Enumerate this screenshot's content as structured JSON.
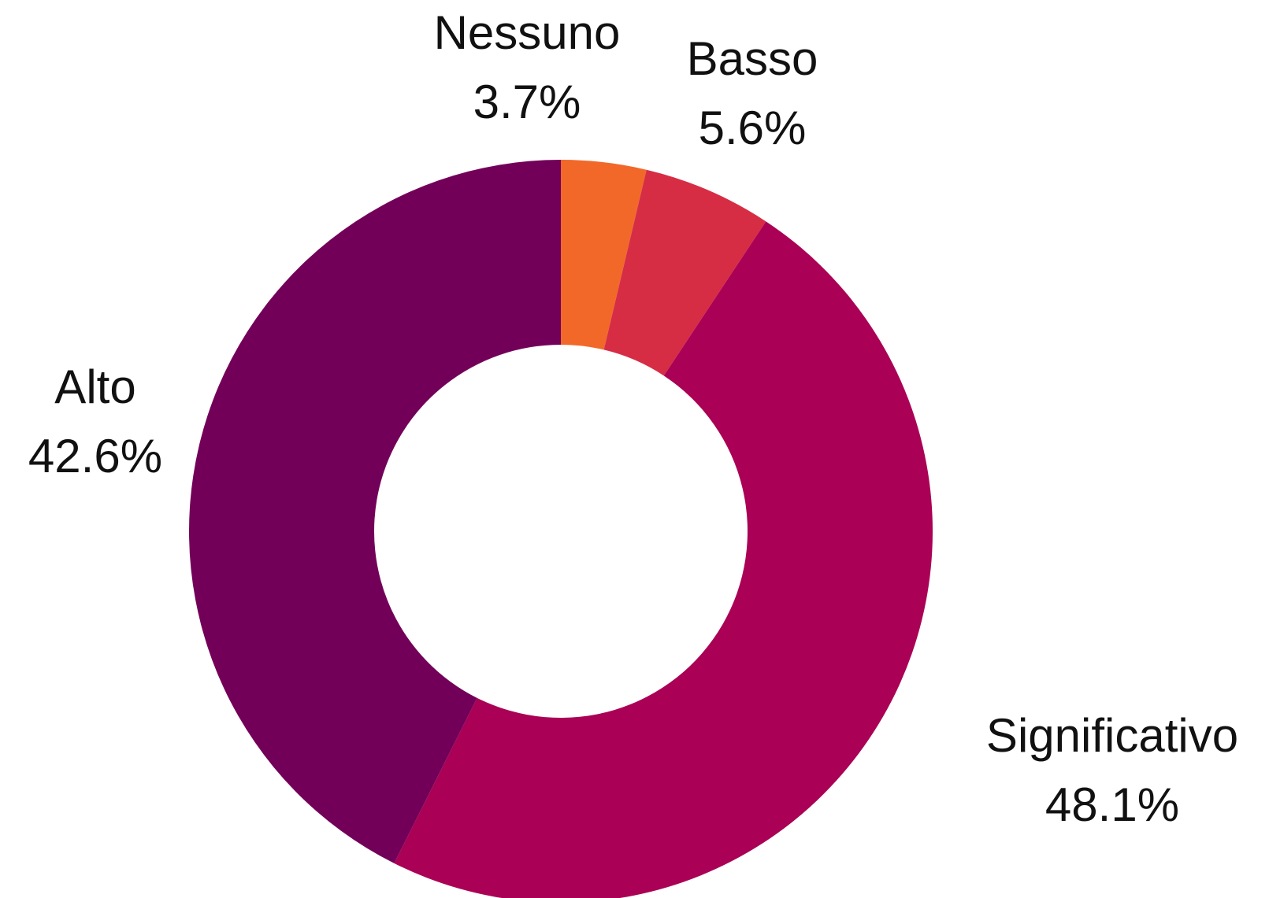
{
  "chart_data": {
    "type": "pie",
    "donut": true,
    "title": "",
    "slices": [
      {
        "label": "Nessuno",
        "value": 3.7,
        "percent_label": "3.7%",
        "color": "#F26829"
      },
      {
        "label": "Basso",
        "value": 5.6,
        "percent_label": "5.6%",
        "color": "#D62D45"
      },
      {
        "label": "Significativo",
        "value": 48.1,
        "percent_label": "48.1%",
        "color": "#AA0055"
      },
      {
        "label": "Alto",
        "value": 42.6,
        "percent_label": "42.6%",
        "color": "#730058"
      }
    ],
    "start": "top",
    "direction": "clockwise",
    "legend": "none"
  }
}
